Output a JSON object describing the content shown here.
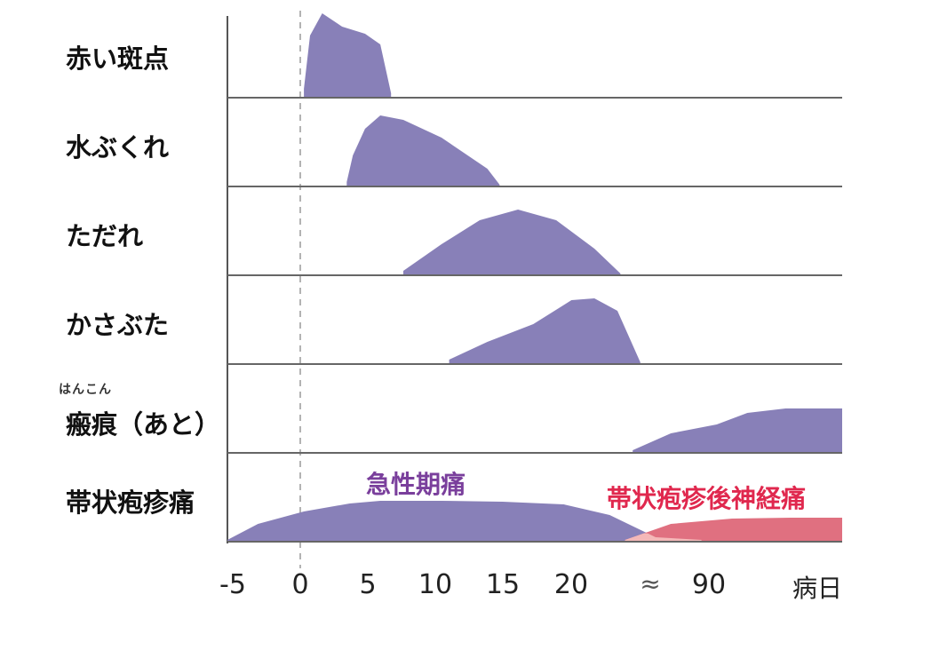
{
  "chart_data": {
    "type": "area",
    "title": "",
    "xlabel": "病日",
    "x_ticks": [
      "-5",
      "0",
      "5",
      "10",
      "15",
      "20",
      "≈",
      "90"
    ],
    "colors": {
      "purple": "#8880b8",
      "pink": "#e07080",
      "overlap": "#f4b8b8",
      "annot_purple": "#7a3f9c",
      "annot_pink": "#e0284e"
    },
    "rows": [
      {
        "label": "赤い斑点",
        "series": [
          {
            "name": "",
            "points": [
              [
                0,
                0.1
              ],
              [
                0.4,
                0.7
              ],
              [
                1.2,
                0.95
              ],
              [
                2.5,
                0.8
              ],
              [
                4,
                0.72
              ],
              [
                5,
                0.6
              ],
              [
                5.7,
                0.05
              ]
            ]
          }
        ]
      },
      {
        "label": "水ぶくれ",
        "series": [
          {
            "name": "",
            "points": [
              [
                2.8,
                0.05
              ],
              [
                3.2,
                0.35
              ],
              [
                4,
                0.65
              ],
              [
                5,
                0.8
              ],
              [
                6.5,
                0.75
              ],
              [
                9,
                0.55
              ],
              [
                12,
                0.2
              ],
              [
                12.8,
                0.02
              ]
            ]
          }
        ]
      },
      {
        "label": "ただれ",
        "series": [
          {
            "name": "",
            "points": [
              [
                6.5,
                0.05
              ],
              [
                9,
                0.35
              ],
              [
                11.5,
                0.62
              ],
              [
                14,
                0.74
              ],
              [
                16.5,
                0.62
              ],
              [
                19,
                0.3
              ],
              [
                20.7,
                0.02
              ]
            ]
          }
        ]
      },
      {
        "label": "かさぶた",
        "series": [
          {
            "name": "",
            "points": [
              [
                9.5,
                0.05
              ],
              [
                12,
                0.25
              ],
              [
                15,
                0.45
              ],
              [
                17.5,
                0.72
              ],
              [
                19,
                0.74
              ],
              [
                20.5,
                0.6
              ],
              [
                22,
                0.02
              ]
            ]
          }
        ]
      },
      {
        "label": "瘢痕（あと）",
        "ruby": "はんこん",
        "series": [
          {
            "name": "",
            "points": [
              [
                21.5,
                0.03
              ],
              [
                24,
                0.22
              ],
              [
                27,
                0.32
              ],
              [
                29,
                0.45
              ],
              [
                31.5,
                0.5
              ],
              [
                35.2,
                0.5
              ]
            ]
          }
        ]
      },
      {
        "label": "帯状疱疹痛",
        "annotations": [
          "急性期痛",
          "帯状疱疹後神経痛"
        ],
        "series": [
          {
            "name": "急性期痛",
            "color": "purple",
            "points": [
              [
                -5,
                0.02
              ],
              [
                -3,
                0.2
              ],
              [
                0,
                0.34
              ],
              [
                3,
                0.43
              ],
              [
                5,
                0.46
              ],
              [
                9,
                0.46
              ],
              [
                13,
                0.45
              ],
              [
                17,
                0.42
              ],
              [
                20,
                0.3
              ],
              [
                23,
                0.05
              ],
              [
                26,
                0.02
              ]
            ]
          },
          {
            "name": "帯状疱疹後神経痛",
            "color": "pink",
            "points": [
              [
                21,
                0.02
              ],
              [
                24,
                0.2
              ],
              [
                28,
                0.26
              ],
              [
                32,
                0.27
              ],
              [
                35.2,
                0.27
              ]
            ]
          }
        ]
      }
    ],
    "xlim": [
      -5,
      35.2
    ],
    "ylim": [
      0,
      1
    ],
    "grid": false,
    "vertical_reference_line_x": 0
  }
}
